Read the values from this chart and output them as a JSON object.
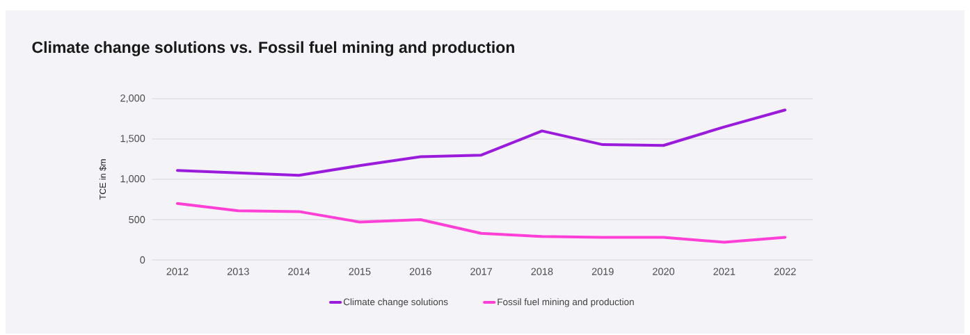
{
  "chart_data": {
    "type": "line",
    "title": "Climate change solutions vs. Fossil fuel mining and production",
    "ylabel": "TCE in $m",
    "categories": [
      "2012",
      "2013",
      "2014",
      "2015",
      "2016",
      "2017",
      "2018",
      "2019",
      "2020",
      "2021",
      "2022"
    ],
    "series": [
      {
        "name": "Climate change solutions",
        "color": "#9b1bdc",
        "values": [
          1110,
          1080,
          1050,
          1170,
          1280,
          1300,
          1600,
          1430,
          1420,
          1650,
          1860
        ]
      },
      {
        "name": "Fossil fuel mining and production",
        "color": "#ff3fd6",
        "values": [
          700,
          610,
          600,
          470,
          500,
          330,
          290,
          280,
          280,
          220,
          280
        ]
      }
    ],
    "ylim": [
      0,
      2000
    ],
    "yticks": [
      0,
      {
        "value": 500,
        "label": "500"
      },
      {
        "value": 1000,
        "label": "1,000"
      },
      {
        "value": 1500,
        "label": "1,500"
      },
      {
        "value": 2000,
        "label": "2,000"
      }
    ],
    "grid": "y",
    "legend": "bottom",
    "marker": "none",
    "line_style": "solid"
  }
}
